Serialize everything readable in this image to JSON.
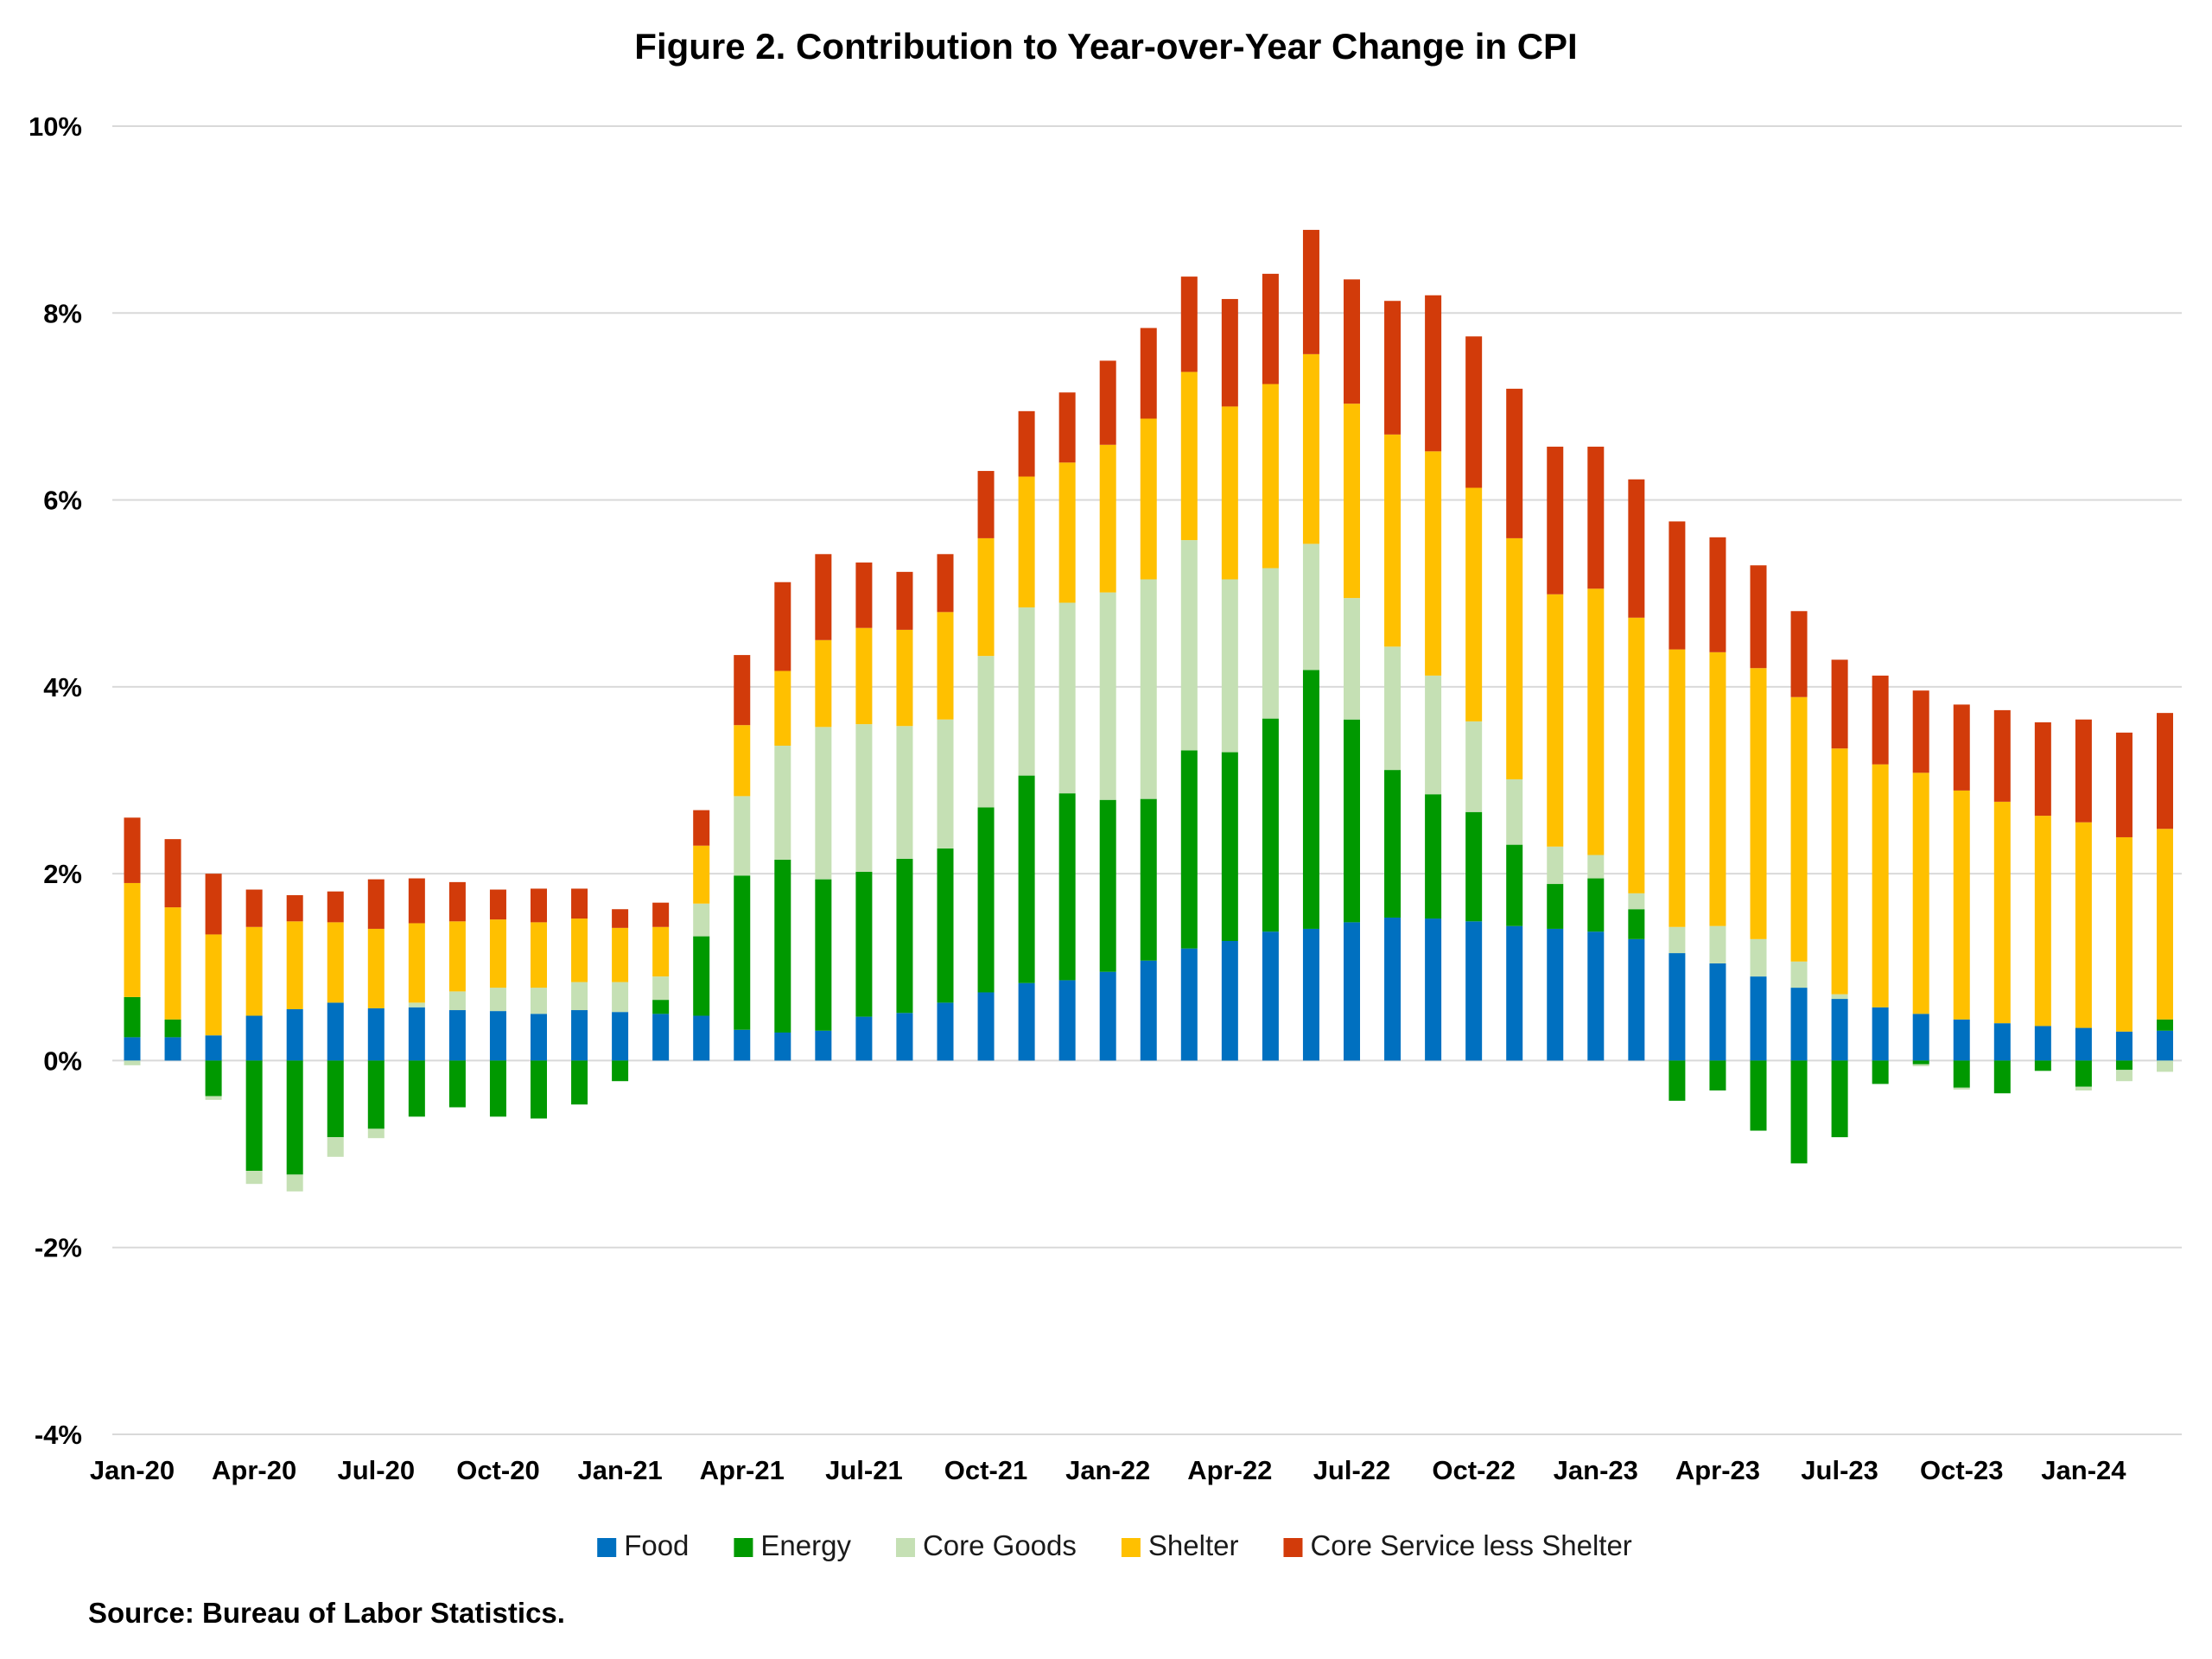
{
  "chart_data": {
    "type": "bar",
    "stacked": true,
    "title": "Figure 2. Contribution to Year-over-Year Change in CPI",
    "source": "Source: Bureau of Labor Statistics.",
    "xlabel": "",
    "ylabel": "",
    "ylim": [
      -4,
      10
    ],
    "yticks": [
      -4,
      -2,
      0,
      2,
      4,
      6,
      8,
      10
    ],
    "ytick_labels": [
      "-4%",
      "-2%",
      "0%",
      "2%",
      "4%",
      "6%",
      "8%",
      "10%"
    ],
    "xtick_labels": [
      "Jan-20",
      "Apr-20",
      "Jul-20",
      "Oct-20",
      "Jan-21",
      "Apr-21",
      "Jul-21",
      "Oct-21",
      "Jan-22",
      "Apr-22",
      "Jul-22",
      "Oct-22",
      "Jan-23",
      "Apr-23",
      "Jul-23",
      "Oct-23",
      "Jan-24"
    ],
    "xtick_every": 3,
    "grid": true,
    "legend_position": "bottom",
    "categories": [
      "Jan-20",
      "Feb-20",
      "Mar-20",
      "Apr-20",
      "May-20",
      "Jun-20",
      "Jul-20",
      "Aug-20",
      "Sep-20",
      "Oct-20",
      "Nov-20",
      "Dec-20",
      "Jan-21",
      "Feb-21",
      "Mar-21",
      "Apr-21",
      "May-21",
      "Jun-21",
      "Jul-21",
      "Aug-21",
      "Sep-21",
      "Oct-21",
      "Nov-21",
      "Dec-21",
      "Jan-22",
      "Feb-22",
      "Mar-22",
      "Apr-22",
      "May-22",
      "Jun-22",
      "Jul-22",
      "Aug-22",
      "Sep-22",
      "Oct-22",
      "Nov-22",
      "Dec-22",
      "Jan-23",
      "Feb-23",
      "Mar-23",
      "Apr-23",
      "May-23",
      "Jun-23",
      "Jul-23",
      "Aug-23",
      "Sep-23",
      "Oct-23",
      "Nov-23",
      "Dec-23",
      "Jan-24",
      "Feb-24",
      "Mar-24"
    ],
    "series": [
      {
        "name": "Food",
        "color": "#0070C0",
        "values": [
          0.25,
          0.25,
          0.27,
          0.48,
          0.55,
          0.62,
          0.56,
          0.57,
          0.54,
          0.53,
          0.5,
          0.54,
          0.52,
          0.5,
          0.48,
          0.33,
          0.3,
          0.32,
          0.47,
          0.51,
          0.62,
          0.73,
          0.83,
          0.86,
          0.95,
          1.07,
          1.2,
          1.28,
          1.38,
          1.41,
          1.48,
          1.53,
          1.52,
          1.49,
          1.44,
          1.41,
          1.38,
          1.3,
          1.15,
          1.04,
          0.9,
          0.78,
          0.66,
          0.57,
          0.5,
          0.44,
          0.4,
          0.37,
          0.35,
          0.31,
          0.32
        ]
      },
      {
        "name": "Energy",
        "color": "#009900",
        "values": [
          0.43,
          0.19,
          -0.38,
          -1.18,
          -1.22,
          -0.82,
          -0.73,
          -0.6,
          -0.5,
          -0.6,
          -0.62,
          -0.47,
          -0.22,
          0.15,
          0.85,
          1.65,
          1.85,
          1.62,
          1.55,
          1.65,
          1.65,
          1.98,
          2.22,
          2.0,
          1.84,
          1.73,
          2.12,
          2.02,
          2.28,
          2.77,
          2.17,
          1.58,
          1.33,
          1.17,
          0.87,
          0.48,
          0.57,
          0.32,
          -0.43,
          -0.32,
          -0.75,
          -1.1,
          -0.82,
          -0.25,
          -0.04,
          -0.29,
          -0.35,
          -0.11,
          -0.28,
          -0.1,
          0.12
        ]
      },
      {
        "name": "Core Goods",
        "color": "#C5E0B4",
        "values": [
          -0.05,
          0.0,
          -0.04,
          -0.14,
          -0.18,
          -0.21,
          -0.1,
          0.05,
          0.2,
          0.25,
          0.28,
          0.3,
          0.32,
          0.25,
          0.35,
          0.85,
          1.22,
          1.63,
          1.58,
          1.42,
          1.38,
          1.62,
          1.8,
          2.04,
          2.22,
          2.35,
          2.25,
          1.85,
          1.61,
          1.35,
          1.3,
          1.32,
          1.27,
          0.97,
          0.7,
          0.4,
          0.25,
          0.17,
          0.28,
          0.4,
          0.4,
          0.28,
          0.05,
          0.0,
          -0.02,
          -0.02,
          0.0,
          0.0,
          -0.04,
          -0.12,
          -0.12
        ]
      },
      {
        "name": "Shelter",
        "color": "#FFC000",
        "values": [
          1.22,
          1.2,
          1.08,
          0.95,
          0.94,
          0.86,
          0.85,
          0.85,
          0.75,
          0.73,
          0.7,
          0.68,
          0.58,
          0.53,
          0.62,
          0.76,
          0.8,
          0.93,
          1.03,
          1.03,
          1.15,
          1.26,
          1.4,
          1.5,
          1.58,
          1.72,
          1.8,
          1.85,
          1.97,
          2.03,
          2.08,
          2.27,
          2.4,
          2.5,
          2.58,
          2.7,
          2.85,
          2.95,
          2.97,
          2.93,
          2.9,
          2.83,
          2.63,
          2.6,
          2.58,
          2.45,
          2.37,
          2.25,
          2.2,
          2.08,
          2.04
        ]
      },
      {
        "name": "Core Service less Shelter",
        "color": "#D23B0A",
        "values": [
          0.7,
          0.73,
          0.65,
          0.4,
          0.28,
          0.33,
          0.53,
          0.48,
          0.42,
          0.32,
          0.36,
          0.32,
          0.2,
          0.26,
          0.38,
          0.75,
          0.95,
          0.92,
          0.7,
          0.62,
          0.62,
          0.72,
          0.7,
          0.75,
          0.9,
          0.97,
          1.02,
          1.15,
          1.18,
          1.33,
          1.33,
          1.43,
          1.67,
          1.62,
          1.6,
          1.58,
          1.52,
          1.48,
          1.37,
          1.23,
          1.1,
          0.92,
          0.95,
          0.95,
          0.88,
          0.92,
          0.98,
          1.0,
          1.1,
          1.12,
          1.24
        ]
      }
    ]
  }
}
